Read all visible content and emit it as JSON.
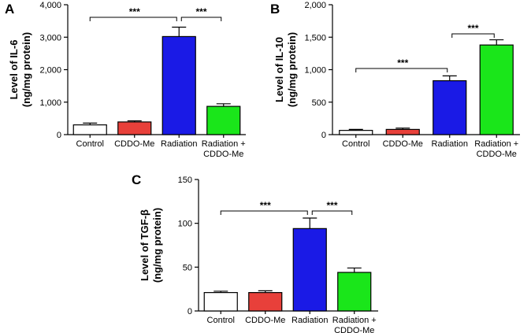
{
  "chart_data": [
    {
      "type": "bar",
      "panel": "A",
      "categories": [
        [
          "Control"
        ],
        [
          "CDDO-Me"
        ],
        [
          "Radiation"
        ],
        [
          "Radiation +",
          "CDDO-Me"
        ]
      ],
      "values": [
        300,
        390,
        3020,
        870
      ],
      "errors": [
        55,
        35,
        290,
        80
      ],
      "colors": [
        "#ffffff",
        "#e8403a",
        "#1a1ae6",
        "#1ae61a"
      ],
      "ylabel": [
        "Level of IL-6",
        "(ng/mg protein)"
      ],
      "ylim": [
        0,
        4000
      ],
      "yticks": [
        0,
        1000,
        2000,
        3000,
        4000
      ],
      "ytick_labels": [
        "0",
        "1,000",
        "2,000",
        "3,000",
        "4,000"
      ],
      "significance": [
        {
          "from": 0,
          "to": 2,
          "label": "***"
        },
        {
          "from": 2,
          "to": 3,
          "label": "***"
        }
      ]
    },
    {
      "type": "bar",
      "panel": "B",
      "categories": [
        [
          "Control"
        ],
        [
          "CDDO-Me"
        ],
        [
          "Radiation"
        ],
        [
          "Radiation +",
          "CDDO-Me"
        ]
      ],
      "values": [
        65,
        80,
        830,
        1380
      ],
      "errors": [
        15,
        20,
        75,
        80
      ],
      "colors": [
        "#ffffff",
        "#e8403a",
        "#1a1ae6",
        "#1ae61a"
      ],
      "ylabel": [
        "Level of IL-10",
        "(ng/mg protein)"
      ],
      "ylim": [
        0,
        2000
      ],
      "yticks": [
        0,
        500,
        1000,
        1500,
        2000
      ],
      "ytick_labels": [
        "0",
        "500",
        "1,000",
        "1,500",
        "2,000"
      ],
      "significance": [
        {
          "from": 0,
          "to": 2,
          "label": "***"
        },
        {
          "from": 2,
          "to": 3,
          "label": "***"
        }
      ]
    },
    {
      "type": "bar",
      "panel": "C",
      "categories": [
        [
          "Control"
        ],
        [
          "CDDO-Me"
        ],
        [
          "Radiation"
        ],
        [
          "Radiation +",
          "CDDO-Me"
        ]
      ],
      "values": [
        21,
        21,
        94,
        44
      ],
      "errors": [
        1.5,
        2,
        12,
        5
      ],
      "colors": [
        "#ffffff",
        "#e8403a",
        "#1a1ae6",
        "#1ae61a"
      ],
      "ylabel": [
        "Level of TGF-β",
        "(ng/mg protein)"
      ],
      "ylim": [
        0,
        150
      ],
      "yticks": [
        0,
        50,
        100,
        150
      ],
      "ytick_labels": [
        "0",
        "50",
        "100",
        "150"
      ],
      "significance": [
        {
          "from": 0,
          "to": 2,
          "label": "***"
        },
        {
          "from": 2,
          "to": 3,
          "label": "***"
        }
      ]
    }
  ]
}
